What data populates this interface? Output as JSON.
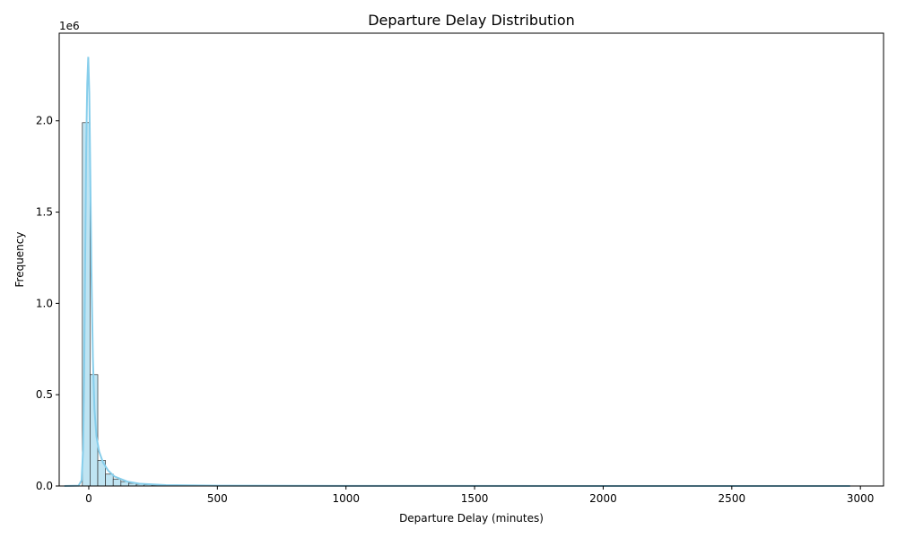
{
  "chart_data": {
    "type": "bar",
    "title": "Departure Delay Distribution",
    "xlabel": "Departure Delay (minutes)",
    "ylabel": "Frequency",
    "y_offset_label": "1e6",
    "xlim": [
      -115,
      3090
    ],
    "ylim": [
      0,
      2480000
    ],
    "x_ticks": [
      0,
      500,
      1000,
      1500,
      2000,
      2500,
      3000
    ],
    "x_tick_labels": [
      "0",
      "500",
      "1000",
      "1500",
      "2000",
      "2500",
      "3000"
    ],
    "y_ticks": [
      0,
      500000,
      1000000,
      1500000,
      2000000
    ],
    "y_tick_labels": [
      "0.0",
      "0.5",
      "1.0",
      "1.5",
      "2.0"
    ],
    "grid": false,
    "bin_width": 30,
    "bins_x_start": [
      -25,
      5,
      35,
      65,
      95,
      125,
      155,
      185,
      215,
      245,
      275,
      305,
      335
    ],
    "bins_frequency": [
      1990000,
      610000,
      140000,
      65000,
      38000,
      24000,
      15000,
      10000,
      7000,
      5000,
      3500,
      2500,
      1800
    ],
    "bar_color": "#bfe4f2",
    "bar_edge_color": "#333333",
    "kde_color": "#87ceeb",
    "kde_x": [
      -95,
      -40,
      -28,
      -22,
      -18,
      -14,
      -10,
      -6,
      -2,
      2,
      6,
      10,
      16,
      22,
      30,
      40,
      55,
      75,
      100,
      150,
      200,
      300,
      500,
      1000,
      2000,
      2960
    ],
    "kde_y": [
      0,
      2000,
      30000,
      200000,
      600000,
      1250000,
      1850000,
      2200000,
      2350000,
      2150000,
      1700000,
      1200000,
      700000,
      420000,
      270000,
      190000,
      130000,
      85000,
      52000,
      24000,
      12000,
      5000,
      1800,
      500,
      150,
      50
    ]
  }
}
